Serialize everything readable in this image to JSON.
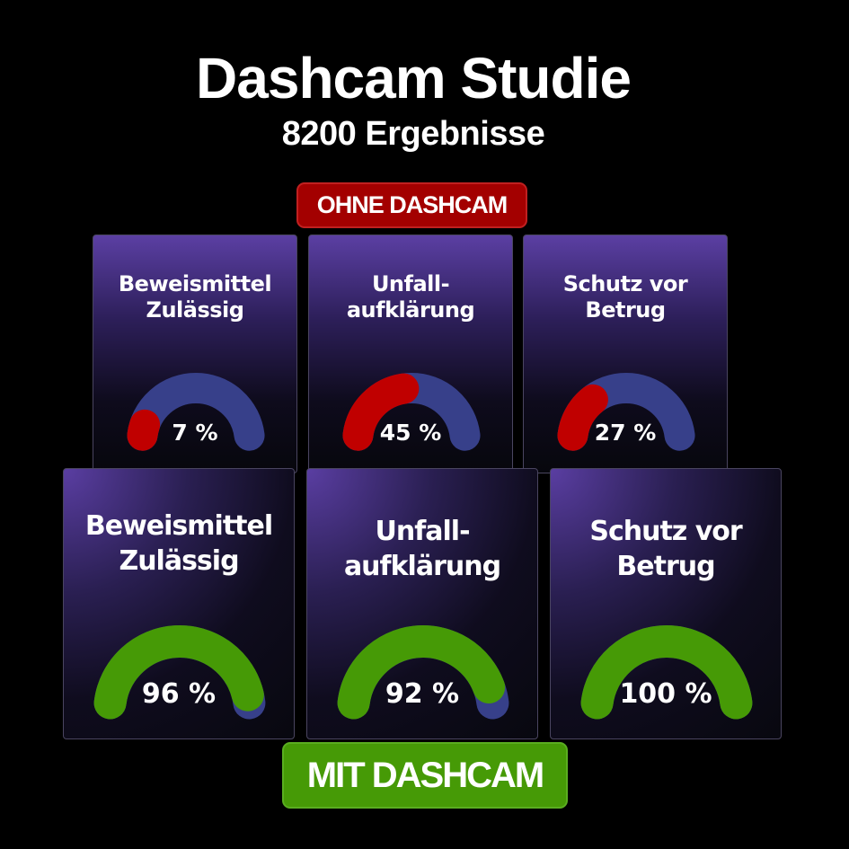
{
  "header": {
    "title": "Dashcam Studie",
    "subtitle": "8200 Ergebnisse"
  },
  "labels": {
    "without": "OHNE DASHCAM",
    "with": "MIT DASHCAM"
  },
  "colors": {
    "track": "#37408a",
    "without": "#c00000",
    "with": "#469a06"
  },
  "without": [
    {
      "label": "Beweismittel\nZulässig",
      "value": 7,
      "value_text": "7 %"
    },
    {
      "label": "Unfall-\naufklärung",
      "value": 45,
      "value_text": "45 %"
    },
    {
      "label": "Schutz vor\nBetrug",
      "value": 27,
      "value_text": "27 %"
    }
  ],
  "with": [
    {
      "label": "Beweismittel\nZulässig",
      "value": 96,
      "value_text": "96 %"
    },
    {
      "label": "Unfall-\naufklärung",
      "value": 92,
      "value_text": "92 %"
    },
    {
      "label": "Schutz vor\nBetrug",
      "value": 100,
      "value_text": "100 %"
    }
  ]
}
